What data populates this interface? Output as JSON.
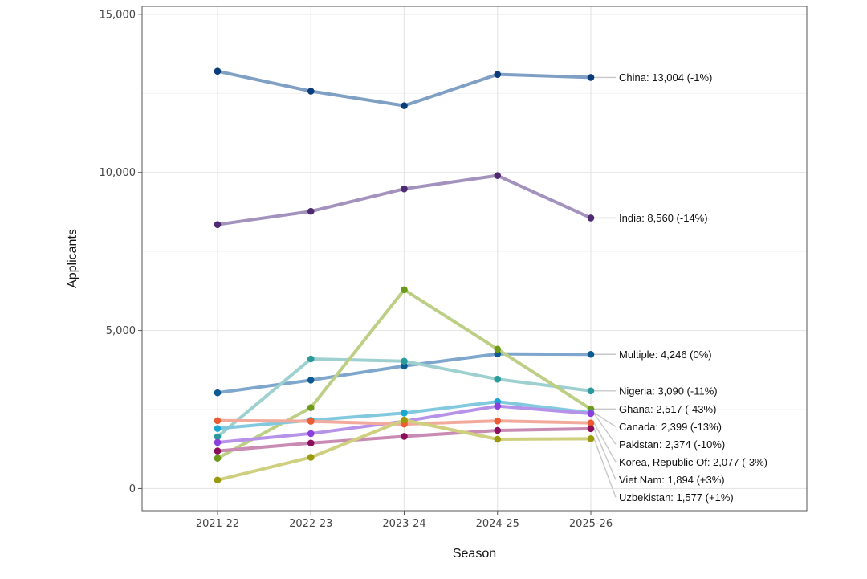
{
  "chart_data": {
    "type": "line",
    "title": "",
    "xlabel": "Season",
    "ylabel": "Applicants",
    "categories": [
      "2021-22",
      "2022-23",
      "2023-24",
      "2024-25",
      "2025-26"
    ],
    "ylim": [
      -700,
      15250
    ],
    "yticks": [
      0,
      5000,
      10000,
      15000
    ],
    "ytick_labels": [
      "0",
      "5,000",
      "10,000",
      "15,000"
    ],
    "grid": true,
    "legend": "none",
    "series": [
      {
        "name": "China",
        "values": [
          13200,
          12570,
          12110,
          13100,
          13004
        ],
        "line_color": "#7f9fc4",
        "point_color": "#0b3b78",
        "label": "China: 13,004 (-1%)"
      },
      {
        "name": "India",
        "values": [
          8350,
          8770,
          9480,
          9900,
          8560
        ],
        "line_color": "#a292bd",
        "point_color": "#4f2a72",
        "label": "India: 8,560 (-14%)"
      },
      {
        "name": "Multiple",
        "values": [
          3030,
          3430,
          3880,
          4260,
          4246
        ],
        "line_color": "#7fa6cc",
        "point_color": "#0c5a92",
        "label": "Multiple: 4,246 (0%)"
      },
      {
        "name": "Nigeria",
        "values": [
          1640,
          4100,
          4030,
          3460,
          3090
        ],
        "line_color": "#9fd0d0",
        "point_color": "#2a9a9c",
        "label": "Nigeria: 3,090 (-11%)"
      },
      {
        "name": "Ghana",
        "values": [
          960,
          2560,
          6290,
          4410,
          2517
        ],
        "line_color": "#bccf84",
        "point_color": "#6e9a1a",
        "label": "Ghana: 2,517 (-43%)"
      },
      {
        "name": "Canada",
        "values": [
          1900,
          2160,
          2390,
          2750,
          2399
        ],
        "line_color": "#82c9df",
        "point_color": "#1ba7d2",
        "label": "Canada: 2,399 (-13%)"
      },
      {
        "name": "Pakistan",
        "values": [
          1460,
          1740,
          2130,
          2610,
          2374
        ],
        "line_color": "#b693e8",
        "point_color": "#8a3fde",
        "label": "Pakistan: 2,374 (-10%)"
      },
      {
        "name": "Korea, Republic Of",
        "values": [
          2150,
          2130,
          2040,
          2140,
          2077
        ],
        "line_color": "#f2aa9c",
        "point_color": "#ee5a32",
        "label": "Korea, Republic Of: 2,077 (-3%)"
      },
      {
        "name": "Viet Nam",
        "values": [
          1190,
          1440,
          1650,
          1840,
          1894
        ],
        "line_color": "#c98bb4",
        "point_color": "#8c0f5c",
        "label": "Viet Nam: 1,894 (+3%)"
      },
      {
        "name": "Uzbekistan",
        "values": [
          270,
          990,
          2170,
          1560,
          1577
        ],
        "line_color": "#cfcf80",
        "point_color": "#9a9a0a",
        "label": "Uzbekistan: 1,577 (+1%)"
      }
    ]
  }
}
